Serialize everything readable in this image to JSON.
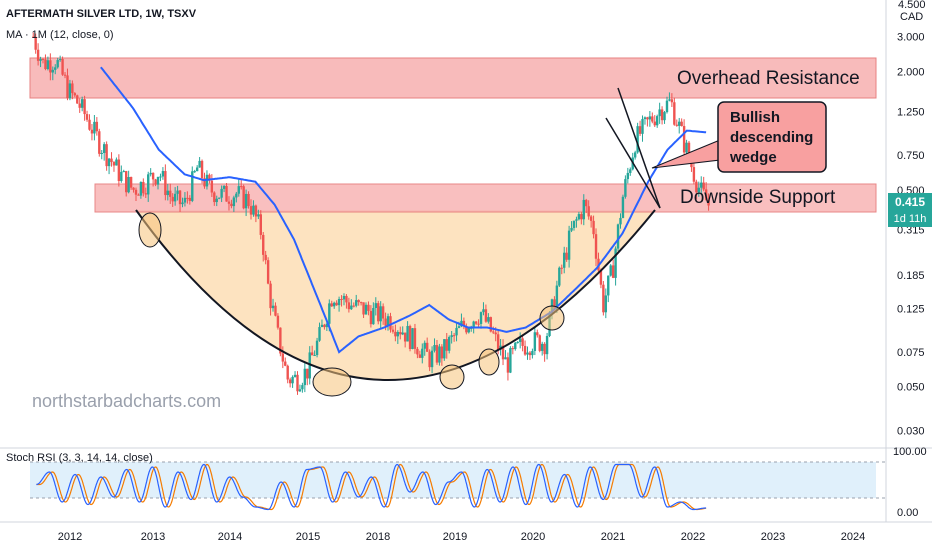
{
  "header": {
    "symbol_line": "AFTERMATH SILVER LTD, 1W, TSXV",
    "indicator_line": "MA · 1M (12, close, 0)",
    "rsi_label": "Stoch RSI (3, 3, 14, 14, close)"
  },
  "price_axis": {
    "currency": "CAD",
    "top_label": "4.500",
    "ticks": [
      "3.000",
      "2.000",
      "1.250",
      "0.750",
      "0.500",
      "0.315",
      "0.185",
      "0.125",
      "0.075",
      "0.050",
      "0.030"
    ]
  },
  "price_tag": {
    "value": "0.415",
    "countdown": "1d 11h"
  },
  "rsi_axis": {
    "ticks": [
      "100.00",
      "0.00"
    ]
  },
  "time_axis": {
    "ticks": [
      "2012",
      "2013",
      "2014",
      "2015",
      "2018",
      "2019",
      "2020",
      "2021",
      "2022",
      "2023",
      "2024"
    ]
  },
  "annotations": {
    "overhead": "Overhead Resistance",
    "support": "Downside Support",
    "wedge": [
      "Bullish",
      "descending",
      "wedge"
    ],
    "watermark": "northstarbadcharts.com"
  },
  "colors": {
    "up": "#26a69a",
    "down": "#ef5350",
    "ma": "#2962ff",
    "zone_fill": "#f8b4b4",
    "zone_border": "#e57373",
    "bowl_fill": "#fde3c0",
    "rsi_k": "#2962ff",
    "rsi_d": "#f57c00",
    "rsi_band": "#e0f0fb"
  },
  "chart_data": {
    "type": "candlestick",
    "scale": "log",
    "ylim": [
      0.025,
      4.5
    ],
    "x_range": [
      2011.4,
      2024.6
    ],
    "resistance_zone": [
      1.55,
      2.2
    ],
    "support_zone": [
      0.35,
      0.52
    ],
    "price": [
      [
        2011.45,
        3.0
      ],
      [
        2011.6,
        2.2
      ],
      [
        2011.8,
        2.3
      ],
      [
        2012.0,
        1.6
      ],
      [
        2012.2,
        1.3
      ],
      [
        2012.5,
        0.85
      ],
      [
        2012.8,
        0.6
      ],
      [
        2013.0,
        0.5
      ],
      [
        2013.2,
        0.55
      ],
      [
        2013.4,
        0.62
      ],
      [
        2013.6,
        0.45
      ],
      [
        2013.8,
        0.42
      ],
      [
        2014.0,
        0.65
      ],
      [
        2014.2,
        0.5
      ],
      [
        2014.4,
        0.47
      ],
      [
        2014.6,
        0.48
      ],
      [
        2014.8,
        0.44
      ],
      [
        2015.0,
        0.3
      ],
      [
        2015.1,
        0.16
      ],
      [
        2015.25,
        0.09
      ],
      [
        2015.4,
        0.055
      ],
      [
        2015.55,
        0.055
      ],
      [
        2015.7,
        0.06
      ],
      [
        2015.9,
        0.09
      ],
      [
        2016.1,
        0.15
      ],
      [
        2016.4,
        0.13
      ],
      [
        2016.7,
        0.12
      ],
      [
        2017.0,
        0.11
      ],
      [
        2017.3,
        0.09
      ],
      [
        2017.6,
        0.07
      ],
      [
        2017.8,
        0.075
      ],
      [
        2018.1,
        0.1
      ],
      [
        2018.4,
        0.12
      ],
      [
        2018.6,
        0.09
      ],
      [
        2018.8,
        0.065
      ],
      [
        2019.0,
        0.08
      ],
      [
        2019.2,
        0.085
      ],
      [
        2019.4,
        0.085
      ],
      [
        2019.6,
        0.17
      ],
      [
        2019.8,
        0.3
      ],
      [
        2020.0,
        0.42
      ],
      [
        2020.15,
        0.32
      ],
      [
        2020.3,
        0.13
      ],
      [
        2020.45,
        0.2
      ],
      [
        2020.6,
        0.45
      ],
      [
        2020.8,
        0.9
      ],
      [
        2021.0,
        1.1
      ],
      [
        2021.2,
        1.3
      ],
      [
        2021.35,
        1.4
      ],
      [
        2021.5,
        1.0
      ],
      [
        2021.65,
        0.7
      ],
      [
        2021.8,
        0.5
      ],
      [
        2021.95,
        0.415
      ]
    ],
    "moving_average": [
      [
        2012.5,
        2.1
      ],
      [
        2013.0,
        1.3
      ],
      [
        2013.4,
        0.8
      ],
      [
        2013.8,
        0.6
      ],
      [
        2014.1,
        0.56
      ],
      [
        2014.5,
        0.58
      ],
      [
        2014.9,
        0.55
      ],
      [
        2015.2,
        0.42
      ],
      [
        2015.5,
        0.28
      ],
      [
        2015.8,
        0.16
      ],
      [
        2016.0,
        0.11
      ],
      [
        2016.2,
        0.075
      ],
      [
        2016.5,
        0.09
      ],
      [
        2016.9,
        0.1
      ],
      [
        2017.3,
        0.115
      ],
      [
        2017.6,
        0.13
      ],
      [
        2017.9,
        0.11
      ],
      [
        2018.2,
        0.1
      ],
      [
        2018.5,
        0.1
      ],
      [
        2018.8,
        0.095
      ],
      [
        2019.1,
        0.1
      ],
      [
        2019.5,
        0.12
      ],
      [
        2019.9,
        0.16
      ],
      [
        2020.2,
        0.2
      ],
      [
        2020.6,
        0.3
      ],
      [
        2021.0,
        0.55
      ],
      [
        2021.3,
        0.8
      ],
      [
        2021.6,
        1.0
      ],
      [
        2021.9,
        0.98
      ]
    ],
    "rsi": {
      "ylim": [
        0,
        100
      ],
      "k": [
        [
          2011.5,
          55
        ],
        [
          2011.7,
          80
        ],
        [
          2011.9,
          20
        ],
        [
          2012.1,
          75
        ],
        [
          2012.3,
          15
        ],
        [
          2012.5,
          70
        ],
        [
          2012.7,
          30
        ],
        [
          2012.9,
          85
        ],
        [
          2013.1,
          20
        ],
        [
          2013.3,
          90
        ],
        [
          2013.5,
          10
        ],
        [
          2013.7,
          80
        ],
        [
          2013.9,
          25
        ],
        [
          2014.1,
          95
        ],
        [
          2014.3,
          20
        ],
        [
          2014.5,
          70
        ],
        [
          2014.7,
          30
        ],
        [
          2014.9,
          10
        ],
        [
          2015.1,
          5
        ],
        [
          2015.3,
          60
        ],
        [
          2015.5,
          10
        ],
        [
          2015.7,
          85
        ],
        [
          2015.9,
          90
        ],
        [
          2016.1,
          20
        ],
        [
          2016.3,
          80
        ],
        [
          2016.5,
          30
        ],
        [
          2016.7,
          70
        ],
        [
          2016.9,
          10
        ],
        [
          2017.1,
          95
        ],
        [
          2017.3,
          40
        ],
        [
          2017.5,
          80
        ],
        [
          2017.7,
          15
        ],
        [
          2017.9,
          60
        ],
        [
          2018.1,
          80
        ],
        [
          2018.3,
          10
        ],
        [
          2018.5,
          85
        ],
        [
          2018.7,
          20
        ],
        [
          2018.9,
          90
        ],
        [
          2019.1,
          15
        ],
        [
          2019.3,
          95
        ],
        [
          2019.5,
          20
        ],
        [
          2019.7,
          75
        ],
        [
          2019.9,
          10
        ],
        [
          2020.1,
          90
        ],
        [
          2020.3,
          25
        ],
        [
          2020.5,
          95
        ],
        [
          2020.7,
          95
        ],
        [
          2020.9,
          30
        ],
        [
          2021.1,
          90
        ],
        [
          2021.3,
          10
        ],
        [
          2021.5,
          20
        ],
        [
          2021.7,
          5
        ],
        [
          2021.9,
          8
        ]
      ]
    }
  }
}
